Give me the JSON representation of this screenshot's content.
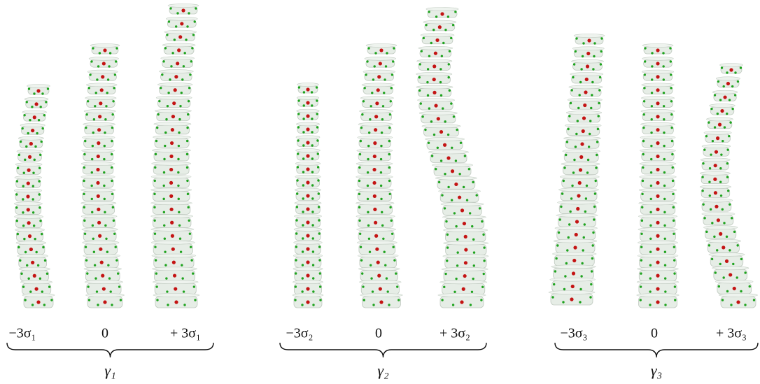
{
  "figure": {
    "groups": [
      {
        "labels": [
          "−3σ₁",
          "0",
          "+ 3σ₁"
        ],
        "caption": "γ₁"
      },
      {
        "labels": [
          "−3σ₂",
          "0",
          "+ 3σ₂"
        ],
        "caption": "γ₂"
      },
      {
        "labels": [
          "−3σ₃",
          "0",
          "+ 3σ₃"
        ],
        "caption": "γ₃"
      }
    ]
  }
}
